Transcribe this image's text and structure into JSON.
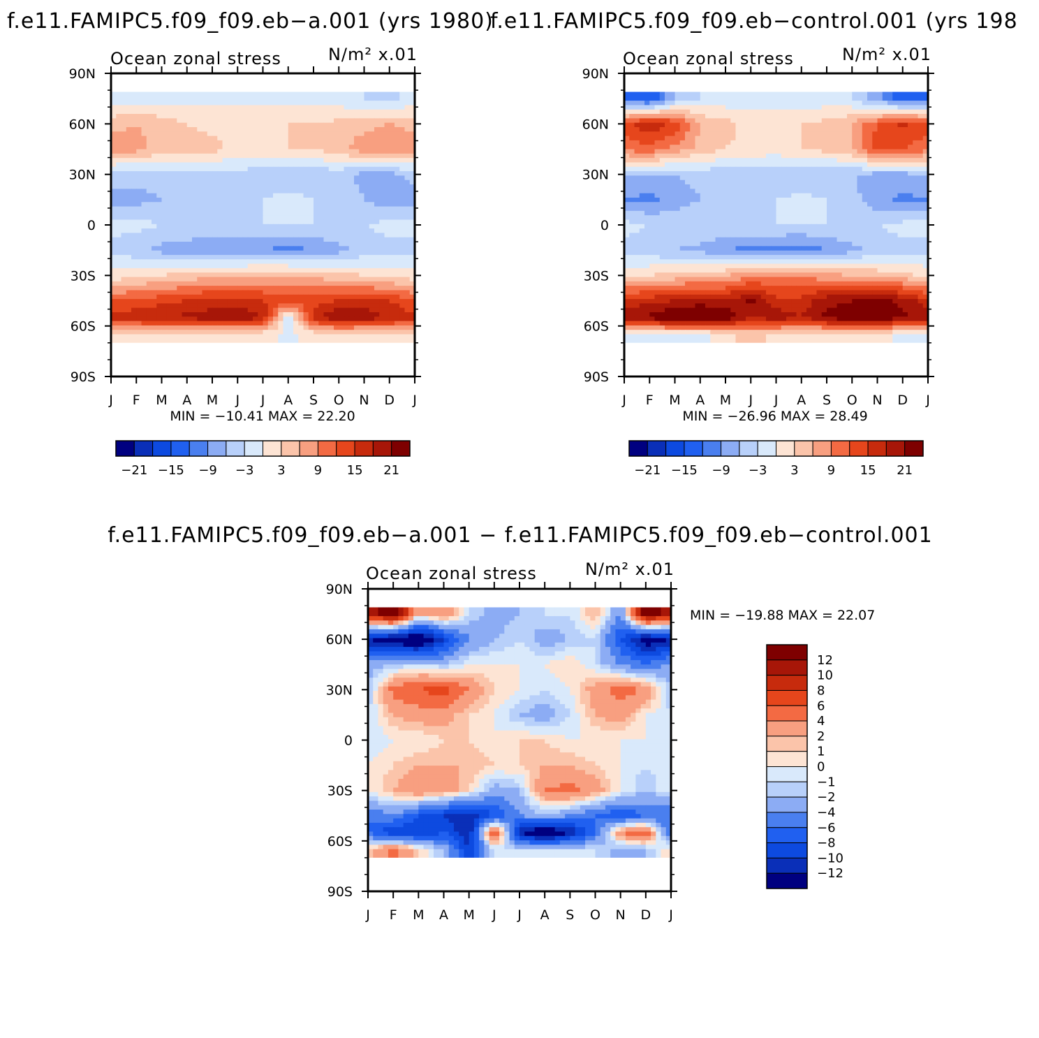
{
  "chart_data": [
    {
      "type": "heatmap",
      "title": "f.e11.FAMIPC5.f09_f09.eb−a.001 (yrs 1980)",
      "subtitle_left": "Ocean zonal stress",
      "subtitle_right": "N/m² x.01",
      "x_ticks": [
        "J",
        "F",
        "M",
        "A",
        "M",
        "J",
        "J",
        "A",
        "S",
        "O",
        "N",
        "D",
        "J"
      ],
      "y_ticks": [
        "90N",
        "60N",
        "30N",
        "0",
        "30S",
        "60S",
        "90S"
      ],
      "ylim": [
        -90,
        90
      ],
      "stats": "MIN =  −10.41  MAX =   22.20",
      "colorbar_labels": [
        "−21",
        "−15",
        "−9",
        "−3",
        "3",
        "9",
        "15",
        "21"
      ],
      "color_levels": [
        -21,
        -18,
        -15,
        -12,
        -9,
        -6,
        -3,
        0,
        3,
        6,
        9,
        12,
        15,
        18,
        21
      ],
      "colors": [
        "#000080",
        "#0a2fb8",
        "#0d4ae0",
        "#2060f0",
        "#4a7fef",
        "#8cacf4",
        "#b8d0fa",
        "#d9e9fb",
        "#fde4d4",
        "#fbc4aa",
        "#f89f80",
        "#f36a43",
        "#e6461c",
        "#c72b0d",
        "#a71608",
        "#7e0000"
      ],
      "grid_rows_lat": [
        75,
        60,
        45,
        30,
        15,
        0,
        -15,
        -30,
        -45,
        -55,
        -65
      ],
      "grid_cols_month": [
        1,
        2,
        3,
        4,
        5,
        6,
        7,
        8,
        9,
        10,
        11,
        12,
        13
      ],
      "grid_values": [
        [
          -2,
          -2,
          -2,
          -1,
          -1,
          -1,
          -1,
          -1,
          -1,
          -2,
          -3,
          -4,
          -2
        ],
        [
          5,
          6,
          5,
          3,
          2,
          2,
          2,
          3,
          3,
          4,
          5,
          6,
          5
        ],
        [
          8,
          7,
          5,
          5,
          4,
          2,
          2,
          3,
          3,
          5,
          8,
          9,
          8
        ],
        [
          -5,
          -5,
          -5,
          -4,
          -4,
          -4,
          -5,
          -5,
          -5,
          -5,
          -7,
          -7,
          -5
        ],
        [
          -7,
          -7,
          -6,
          -5,
          -4,
          -4,
          -3,
          -2,
          -3,
          -4,
          -6,
          -8,
          -7
        ],
        [
          -2,
          -2,
          -3,
          -3,
          -3,
          -3,
          -3,
          -3,
          -3,
          -3,
          -3,
          -2,
          -2
        ],
        [
          -4,
          -5,
          -7,
          -8,
          -9,
          -9,
          -9,
          -10,
          -9,
          -7,
          -5,
          -4,
          -4
        ],
        [
          1,
          2,
          3,
          4,
          5,
          5,
          6,
          6,
          5,
          4,
          3,
          2,
          1
        ],
        [
          12,
          13,
          14,
          15,
          16,
          16,
          15,
          14,
          14,
          15,
          16,
          15,
          12
        ],
        [
          16,
          17,
          18,
          19,
          20,
          21,
          18,
          -2,
          16,
          22,
          20,
          18,
          16
        ],
        [
          2,
          2,
          1,
          1,
          1,
          1,
          1,
          -1,
          1,
          1,
          1,
          1,
          2
        ]
      ]
    },
    {
      "type": "heatmap",
      "title": "f.e11.FAMIPC5.f09_f09.eb−control.001 (yrs 198",
      "subtitle_left": "Ocean zonal stress",
      "subtitle_right": "N/m² x.01",
      "x_ticks": [
        "J",
        "F",
        "M",
        "A",
        "M",
        "J",
        "J",
        "A",
        "S",
        "O",
        "N",
        "D",
        "J"
      ],
      "y_ticks": [
        "90N",
        "60N",
        "30N",
        "0",
        "30S",
        "60S",
        "90S"
      ],
      "ylim": [
        -90,
        90
      ],
      "stats": "MIN =  −26.96  MAX =   28.49",
      "colorbar_labels": [
        "−21",
        "−15",
        "−9",
        "−3",
        "3",
        "9",
        "15",
        "21"
      ],
      "color_levels": [
        -21,
        -18,
        -15,
        -12,
        -9,
        -6,
        -3,
        0,
        3,
        6,
        9,
        12,
        15,
        18,
        21
      ],
      "colors": [
        "#000080",
        "#0a2fb8",
        "#0d4ae0",
        "#2060f0",
        "#4a7fef",
        "#8cacf4",
        "#b8d0fa",
        "#d9e9fb",
        "#fde4d4",
        "#fbc4aa",
        "#f89f80",
        "#f36a43",
        "#e6461c",
        "#c72b0d",
        "#a71608",
        "#7e0000"
      ],
      "grid_rows_lat": [
        75,
        60,
        45,
        30,
        15,
        0,
        -15,
        -30,
        -45,
        -55,
        -65
      ],
      "grid_cols_month": [
        1,
        2,
        3,
        4,
        5,
        6,
        7,
        8,
        9,
        10,
        11,
        12,
        13
      ],
      "grid_values": [
        [
          -12,
          -15,
          -6,
          -3,
          -2,
          -2,
          -2,
          -2,
          -2,
          -3,
          -8,
          -14,
          -12
        ],
        [
          13,
          18,
          14,
          6,
          4,
          2,
          3,
          3,
          4,
          6,
          12,
          16,
          13
        ],
        [
          10,
          11,
          8,
          5,
          3,
          2,
          2,
          3,
          4,
          6,
          14,
          12,
          10
        ],
        [
          -6,
          -6,
          -6,
          -5,
          -5,
          -5,
          -6,
          -6,
          -6,
          -6,
          -7,
          -7,
          -6
        ],
        [
          -9,
          -10,
          -8,
          -6,
          -4,
          -4,
          -3,
          -2,
          -3,
          -5,
          -8,
          -10,
          -9
        ],
        [
          -2,
          -3,
          -3,
          -3,
          -3,
          -3,
          -3,
          -3,
          -3,
          -3,
          -3,
          -2,
          -2
        ],
        [
          -4,
          -5,
          -6,
          -7,
          -9,
          -10,
          -10,
          -11,
          -9,
          -7,
          -5,
          -4,
          -4
        ],
        [
          2,
          3,
          4,
          5,
          6,
          8,
          9,
          8,
          7,
          6,
          5,
          4,
          2
        ],
        [
          16,
          17,
          18,
          19,
          18,
          22,
          16,
          16,
          20,
          21,
          22,
          20,
          16
        ],
        [
          20,
          22,
          25,
          27,
          24,
          18,
          20,
          18,
          22,
          24,
          24,
          22,
          20
        ],
        [
          -1,
          -1,
          -1,
          -2,
          2,
          4,
          2,
          1,
          1,
          1,
          1,
          -1,
          -1
        ]
      ]
    },
    {
      "type": "heatmap",
      "title": "f.e11.FAMIPC5.f09_f09.eb−a.001 − f.e11.FAMIPC5.f09_f09.eb−control.001",
      "subtitle_left": "Ocean zonal stress",
      "subtitle_right": "N/m² x.01",
      "x_ticks": [
        "J",
        "F",
        "M",
        "A",
        "M",
        "J",
        "J",
        "A",
        "S",
        "O",
        "N",
        "D",
        "J"
      ],
      "y_ticks": [
        "90N",
        "60N",
        "30N",
        "0",
        "30S",
        "60S",
        "90S"
      ],
      "ylim": [
        -90,
        90
      ],
      "stats": "MIN =  −19.88  MAX =   22.07",
      "colorbar_labels": [
        "12",
        "10",
        "8",
        "6",
        "4",
        "2",
        "1",
        "0",
        "−1",
        "−2",
        "−4",
        "−6",
        "−8",
        "−10",
        "−12"
      ],
      "color_levels": [
        -12,
        -10,
        -8,
        -6,
        -4,
        -2,
        -1,
        0,
        1,
        2,
        4,
        6,
        8,
        10,
        12
      ],
      "colors": [
        "#000080",
        "#0a2fb8",
        "#0d4ae0",
        "#2060f0",
        "#4a7fef",
        "#8cacf4",
        "#b8d0fa",
        "#d9e9fb",
        "#fde4d4",
        "#fbc4aa",
        "#f89f80",
        "#f36a43",
        "#e6461c",
        "#c72b0d",
        "#a71608",
        "#7e0000"
      ],
      "grid_rows_lat": [
        75,
        60,
        45,
        30,
        15,
        0,
        -15,
        -30,
        -45,
        -55,
        -65
      ],
      "grid_cols_month": [
        1,
        2,
        3,
        4,
        5,
        6,
        7,
        8,
        9,
        10,
        11,
        12,
        13
      ],
      "grid_values": [
        [
          10,
          14,
          2,
          4,
          -1,
          -3,
          -2,
          -1,
          -1,
          2,
          -4,
          14,
          10
        ],
        [
          -12,
          -14,
          -16,
          -10,
          -4,
          -2,
          -1,
          -3,
          -2,
          -1,
          -8,
          -14,
          -12
        ],
        [
          -3,
          -2,
          -1,
          -2,
          0,
          0,
          0,
          0,
          1,
          -1,
          -4,
          -6,
          -3
        ],
        [
          -2,
          5,
          6,
          7,
          4,
          1,
          0,
          -1,
          0,
          3,
          5,
          4,
          -2
        ],
        [
          -1,
          2,
          3,
          3,
          1,
          0,
          -2,
          -3,
          -1,
          2,
          3,
          0,
          -1
        ],
        [
          -1,
          0,
          0,
          1,
          1,
          0,
          1,
          1,
          0,
          0,
          0,
          0,
          -1
        ],
        [
          0,
          1,
          2,
          2,
          2,
          1,
          1,
          2,
          2,
          1,
          0,
          -1,
          0
        ],
        [
          0,
          2,
          4,
          3,
          1,
          -3,
          -2,
          4,
          5,
          3,
          0,
          -2,
          0
        ],
        [
          -6,
          -4,
          -8,
          -10,
          -12,
          -8,
          -4,
          -2,
          -4,
          -6,
          -8,
          -6,
          -6
        ],
        [
          -6,
          -10,
          -10,
          -8,
          -12,
          8,
          -12,
          -16,
          -12,
          -6,
          4,
          6,
          -6
        ],
        [
          1,
          5,
          1,
          -2,
          -10,
          -1,
          -1,
          -1,
          -1,
          -1,
          -3,
          -2,
          1
        ]
      ]
    }
  ]
}
